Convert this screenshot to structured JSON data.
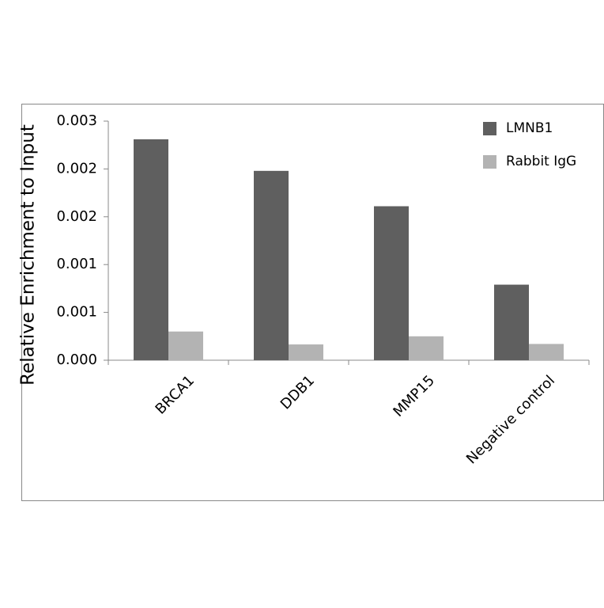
{
  "chart_data": {
    "type": "bar",
    "y_label": "Relative Enrichment to Input",
    "categories": [
      "BRCA1",
      "DDB1",
      "MMP15",
      "Negative control"
    ],
    "series": [
      {
        "name": "LMNB1",
        "color": "#5f5f5f",
        "values": [
          0.00231,
          0.00198,
          0.00161,
          0.00079
        ]
      },
      {
        "name": "Rabbit IgG",
        "color": "#b3b3b3",
        "values": [
          0.0003,
          0.000165,
          0.00025,
          0.00017
        ]
      }
    ],
    "ylim": [
      0,
      0.0025
    ],
    "yticks": [
      {
        "value": 0,
        "label": "0.000"
      },
      {
        "value": 0.0005,
        "label": "0.001"
      },
      {
        "value": 0.001,
        "label": "0.001"
      },
      {
        "value": 0.0015,
        "label": "0.002"
      },
      {
        "value": 0.002,
        "label": "0.002"
      },
      {
        "value": 0.0025,
        "label": "0.003"
      }
    ],
    "legend": "top-right"
  }
}
